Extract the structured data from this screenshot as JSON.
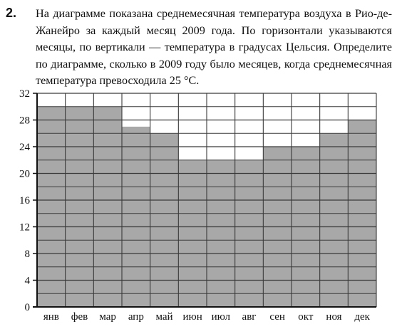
{
  "problem": {
    "number": "2.",
    "text": "На диаграмме показана среднемесячная температура воздуха в Рио-де-Жанейро за каждый месяц 2009 года. По горизонтали указываются месяцы, по вертикали — температура в градусах Цельсия. Определите по диаграмме, сколько в 2009 году было месяцев, когда среднемесячная температура превосходила 25 °С."
  },
  "colors": {
    "bar_fill": "#a8a8a8",
    "grid_line": "#3a3a3a",
    "axis": "#111111",
    "background": "#ffffff"
  },
  "chart_data": {
    "type": "bar",
    "categories": [
      "янв",
      "фев",
      "мар",
      "апр",
      "май",
      "июн",
      "июл",
      "авг",
      "сен",
      "окт",
      "ноя",
      "дек"
    ],
    "values": [
      30,
      30,
      30,
      27,
      26,
      22,
      22,
      22,
      24,
      24,
      26,
      28
    ],
    "title": "",
    "xlabel": "",
    "ylabel": "",
    "ylim": [
      0,
      32
    ],
    "yticks": [
      0,
      4,
      8,
      12,
      16,
      20,
      24,
      28,
      32
    ],
    "minor_grid_step": 2,
    "grid": true,
    "legend": "none"
  }
}
